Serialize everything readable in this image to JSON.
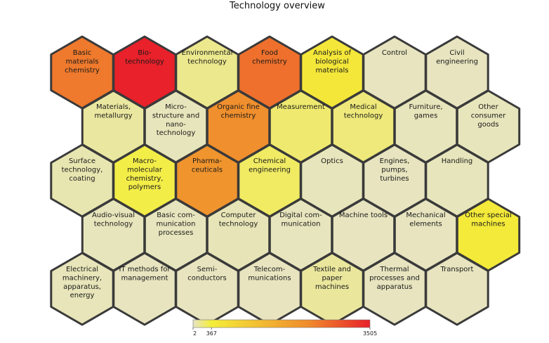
{
  "chart_data": {
    "type": "heatmap",
    "layout": "hexagonal-tile-map",
    "title": "Technology overview",
    "rows": [
      [
        {
          "label": "Basic materials chemistry",
          "lines": [
            "Basic",
            "materials",
            "chemistry"
          ],
          "value": 2500
        },
        {
          "label": "Bio-technology",
          "lines": [
            "Bio-",
            "technology"
          ],
          "value": 3505
        },
        {
          "label": "Environmental technology",
          "lines": [
            "Environmental",
            "technology"
          ],
          "value": 150
        },
        {
          "label": "Food chemistry",
          "lines": [
            "Food",
            "chemistry"
          ],
          "value": 2600
        },
        {
          "label": "Analysis of biological materials",
          "lines": [
            "Analysis of",
            "biological",
            "materials"
          ],
          "value": 500
        },
        {
          "label": "Control",
          "lines": [
            "Control"
          ],
          "value": 20
        },
        {
          "label": "Civil engineering",
          "lines": [
            "Civil",
            "engineering"
          ],
          "value": 20
        }
      ],
      [
        {
          "label": "Materials, metallurgy",
          "lines": [
            "Materials,",
            "metallurgy"
          ],
          "value": 100
        },
        {
          "label": "Micro-structure and nano-technology",
          "lines": [
            "Micro-",
            "structure and",
            "nano-",
            "technology"
          ],
          "value": 30
        },
        {
          "label": "Organic fine chemistry",
          "lines": [
            "Organic fine",
            "chemistry"
          ],
          "value": 2200
        },
        {
          "label": "Measurement",
          "lines": [
            "Measurement"
          ],
          "value": 230
        },
        {
          "label": "Medical technology",
          "lines": [
            "Medical",
            "technology"
          ],
          "value": 200
        },
        {
          "label": "Furniture, games",
          "lines": [
            "Furniture,",
            "games"
          ],
          "value": 30
        },
        {
          "label": "Other consumer goods",
          "lines": [
            "Other",
            "consumer",
            "goods"
          ],
          "value": 30
        }
      ],
      [
        {
          "label": "Surface technology, coating",
          "lines": [
            "Surface",
            "technology,",
            "coating"
          ],
          "value": 60
        },
        {
          "label": "Macro-molecular chemistry, polymers",
          "lines": [
            "Macro-",
            "molecular",
            "chemistry,",
            "polymers"
          ],
          "value": 330
        },
        {
          "label": "Pharma-ceuticals",
          "lines": [
            "Pharma-",
            "ceuticals"
          ],
          "value": 2100
        },
        {
          "label": "Chemical engineering",
          "lines": [
            "Chemical",
            "engineering"
          ],
          "value": 260
        },
        {
          "label": "Optics",
          "lines": [
            "Optics"
          ],
          "value": 30
        },
        {
          "label": "Engines, pumps, turbines",
          "lines": [
            "Engines,",
            "pumps,",
            "turbines"
          ],
          "value": 20
        },
        {
          "label": "Handling",
          "lines": [
            "Handling"
          ],
          "value": 30
        }
      ],
      [
        {
          "label": "Audio-visual technology",
          "lines": [
            "Audio-visual",
            "technology"
          ],
          "value": 30
        },
        {
          "label": "Basic com-munication processes",
          "lines": [
            "Basic com-",
            "munication",
            "processes"
          ],
          "value": 25
        },
        {
          "label": "Computer technology",
          "lines": [
            "Computer",
            "technology"
          ],
          "value": 40
        },
        {
          "label": "Digital com-munication",
          "lines": [
            "Digital com-",
            "munication"
          ],
          "value": 25
        },
        {
          "label": "Machine tools",
          "lines": [
            "Machine tools"
          ],
          "value": 20
        },
        {
          "label": "Mechanical elements",
          "lines": [
            "Mechanical",
            "elements"
          ],
          "value": 20
        },
        {
          "label": "Other special machines",
          "lines": [
            "Other special",
            "machines"
          ],
          "value": 450
        }
      ],
      [
        {
          "label": "Electrical machinery, apparatus, energy",
          "lines": [
            "Electrical",
            "machinery,",
            "apparatus,",
            "energy"
          ],
          "value": 35
        },
        {
          "label": "IT methods for management",
          "lines": [
            "IT methods for",
            "management"
          ],
          "value": 20
        },
        {
          "label": "Semi-conductors",
          "lines": [
            "Semi-",
            "conductors"
          ],
          "value": 20
        },
        {
          "label": "Telecom-munications",
          "lines": [
            "Telecom-",
            "munications"
          ],
          "value": 20
        },
        {
          "label": "Textile and paper machines",
          "lines": [
            "Textile and",
            "paper",
            "machines"
          ],
          "value": 110
        },
        {
          "label": "Thermal processes and apparatus",
          "lines": [
            "Thermal",
            "processes and",
            "apparatus"
          ],
          "value": 20
        },
        {
          "label": "Transport",
          "lines": [
            "Transport"
          ],
          "value": 20
        }
      ]
    ],
    "colorscale": {
      "min": 2,
      "max": 3505,
      "ticks": [
        2,
        367,
        3505
      ],
      "stops": [
        {
          "value": 2,
          "color": "#e6e4c6"
        },
        {
          "value": 367,
          "color": "#f4ee3a"
        },
        {
          "value": 2300,
          "color": "#f08a2c"
        },
        {
          "value": 3505,
          "color": "#e8212a"
        }
      ]
    }
  }
}
